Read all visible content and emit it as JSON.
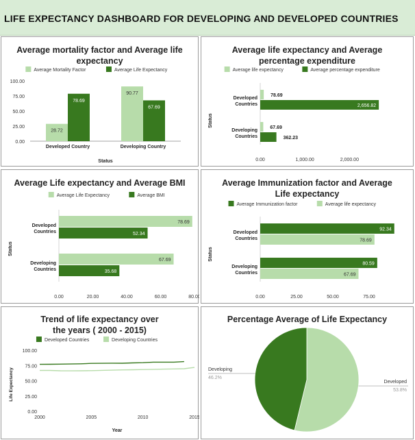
{
  "dashboard_title": "LIFE EXPECTANCY DASHBOARD FOR DEVELOPING AND DEVELOPED COUNTRIES",
  "colors": {
    "light_green": "#b7dcaa",
    "dark_green": "#38791f",
    "header_bg": "#d9ecd6"
  },
  "chart_data": [
    {
      "id": "mortality",
      "type": "bar",
      "title": "Average mortality factor and Average life expectancy",
      "xlabel": "Status",
      "ylabel": "",
      "categories": [
        "Developed Country",
        "Developing Country"
      ],
      "series": [
        {
          "name": "Average Mortality Factor",
          "values": [
            28.72,
            90.77
          ],
          "labels": [
            "28.72",
            "90.77"
          ],
          "color": "#b7dcaa"
        },
        {
          "name": "Average Life Expectancy",
          "values": [
            78.69,
            67.69
          ],
          "labels": [
            "78.69",
            "67.69"
          ],
          "color": "#38791f"
        }
      ],
      "yticks": [
        "100.00",
        "75.00",
        "50.00",
        "25.00",
        "0.00"
      ],
      "ylim": [
        0,
        100
      ],
      "legend": "top",
      "grid": false
    },
    {
      "id": "expenditure",
      "type": "bar",
      "orientation": "horizontal",
      "title": "Average life expectancy and Average percentage expenditure",
      "ylabel": "Status",
      "categories": [
        "Developed Countries",
        "Developing Countries"
      ],
      "series": [
        {
          "name": "Average life expectancy",
          "values": [
            78.69,
            67.69
          ],
          "labels": [
            "78.69",
            "67.69"
          ],
          "color": "#b7dcaa"
        },
        {
          "name": "Average percentage expenditure",
          "values": [
            2656.82,
            362.23
          ],
          "labels": [
            "2,656.82",
            "362.23"
          ],
          "color": "#38791f"
        }
      ],
      "xticks": [
        "0.00",
        "1,000.00",
        "2,000.00"
      ],
      "xlim": [
        0,
        2900
      ],
      "legend": "top",
      "grid": false
    },
    {
      "id": "bmi",
      "type": "bar",
      "orientation": "horizontal",
      "title": "Average Life expectancy and Average BMI",
      "ylabel": "Status",
      "categories": [
        "Developed Countries",
        "Developing Countries"
      ],
      "series": [
        {
          "name": "Average  Life Expectancy",
          "values": [
            78.69,
            67.69
          ],
          "labels": [
            "78.69",
            "67.69"
          ],
          "color": "#b7dcaa"
        },
        {
          "name": "Average BMI",
          "values": [
            52.34,
            35.68
          ],
          "labels": [
            "52.34",
            "35.68"
          ],
          "color": "#38791f"
        }
      ],
      "xticks": [
        "0.00",
        "20.00",
        "40.00",
        "60.00",
        "80.00"
      ],
      "xlim": [
        0,
        80
      ],
      "legend": "top",
      "grid": false
    },
    {
      "id": "immunization",
      "type": "bar",
      "orientation": "horizontal",
      "title": "Average Immunization factor and Average Life expectancy",
      "ylabel": "Status",
      "categories": [
        "Developed Countries",
        "Developing Countries"
      ],
      "series": [
        {
          "name": "Average Immunization factor",
          "values": [
            92.34,
            80.59
          ],
          "labels": [
            "92.34",
            "80.59"
          ],
          "color": "#38791f"
        },
        {
          "name": "Average life expectancy",
          "values": [
            78.69,
            67.69
          ],
          "labels": [
            "78.69",
            "67.69"
          ],
          "color": "#b7dcaa"
        }
      ],
      "xticks": [
        "0.00",
        "25.00",
        "50.00",
        "75.00"
      ],
      "xlim": [
        0,
        100
      ],
      "legend": "top",
      "grid": false
    },
    {
      "id": "trend",
      "type": "line",
      "title": "Trend of life expectancy over the years ( 2000 - 2015)",
      "xlabel": "Year",
      "ylabel": "Life Expectancy",
      "x": [
        2000,
        2001,
        2002,
        2003,
        2004,
        2005,
        2006,
        2007,
        2008,
        2009,
        2010,
        2011,
        2012,
        2013,
        2014,
        2015
      ],
      "series": [
        {
          "name": "Developed Countries",
          "values": [
            76.8,
            77.0,
            77.2,
            77.4,
            77.8,
            78.4,
            78.5,
            78.8,
            78.7,
            79.2,
            79.5,
            80.5,
            80.4,
            80.5,
            81.3,
            null
          ],
          "color": "#38791f"
        },
        {
          "name": "Developing Countries",
          "values": [
            66.8,
            66.8,
            66.3,
            66.2,
            66.3,
            66.5,
            67.0,
            67.3,
            67.7,
            68.0,
            68.3,
            68.6,
            69.0,
            69.3,
            69.7,
            71.8
          ],
          "color": "#b7dcaa"
        }
      ],
      "xticks": [
        "2000",
        "2005",
        "2010",
        "2015"
      ],
      "yticks": [
        "100.00",
        "75.00",
        "50.00",
        "25.00",
        "0.00"
      ],
      "xlim": [
        2000,
        2015
      ],
      "ylim": [
        0,
        100
      ],
      "legend": "top",
      "grid": false
    },
    {
      "id": "pie",
      "type": "pie",
      "title": "Percentage Average of Life Expectancy",
      "slices": [
        {
          "name": "Developed",
          "value": 53.8,
          "label": "53.8%",
          "color": "#b7dcaa"
        },
        {
          "name": "Developing",
          "value": 46.2,
          "label": "46.2%",
          "color": "#38791f"
        }
      ]
    }
  ]
}
